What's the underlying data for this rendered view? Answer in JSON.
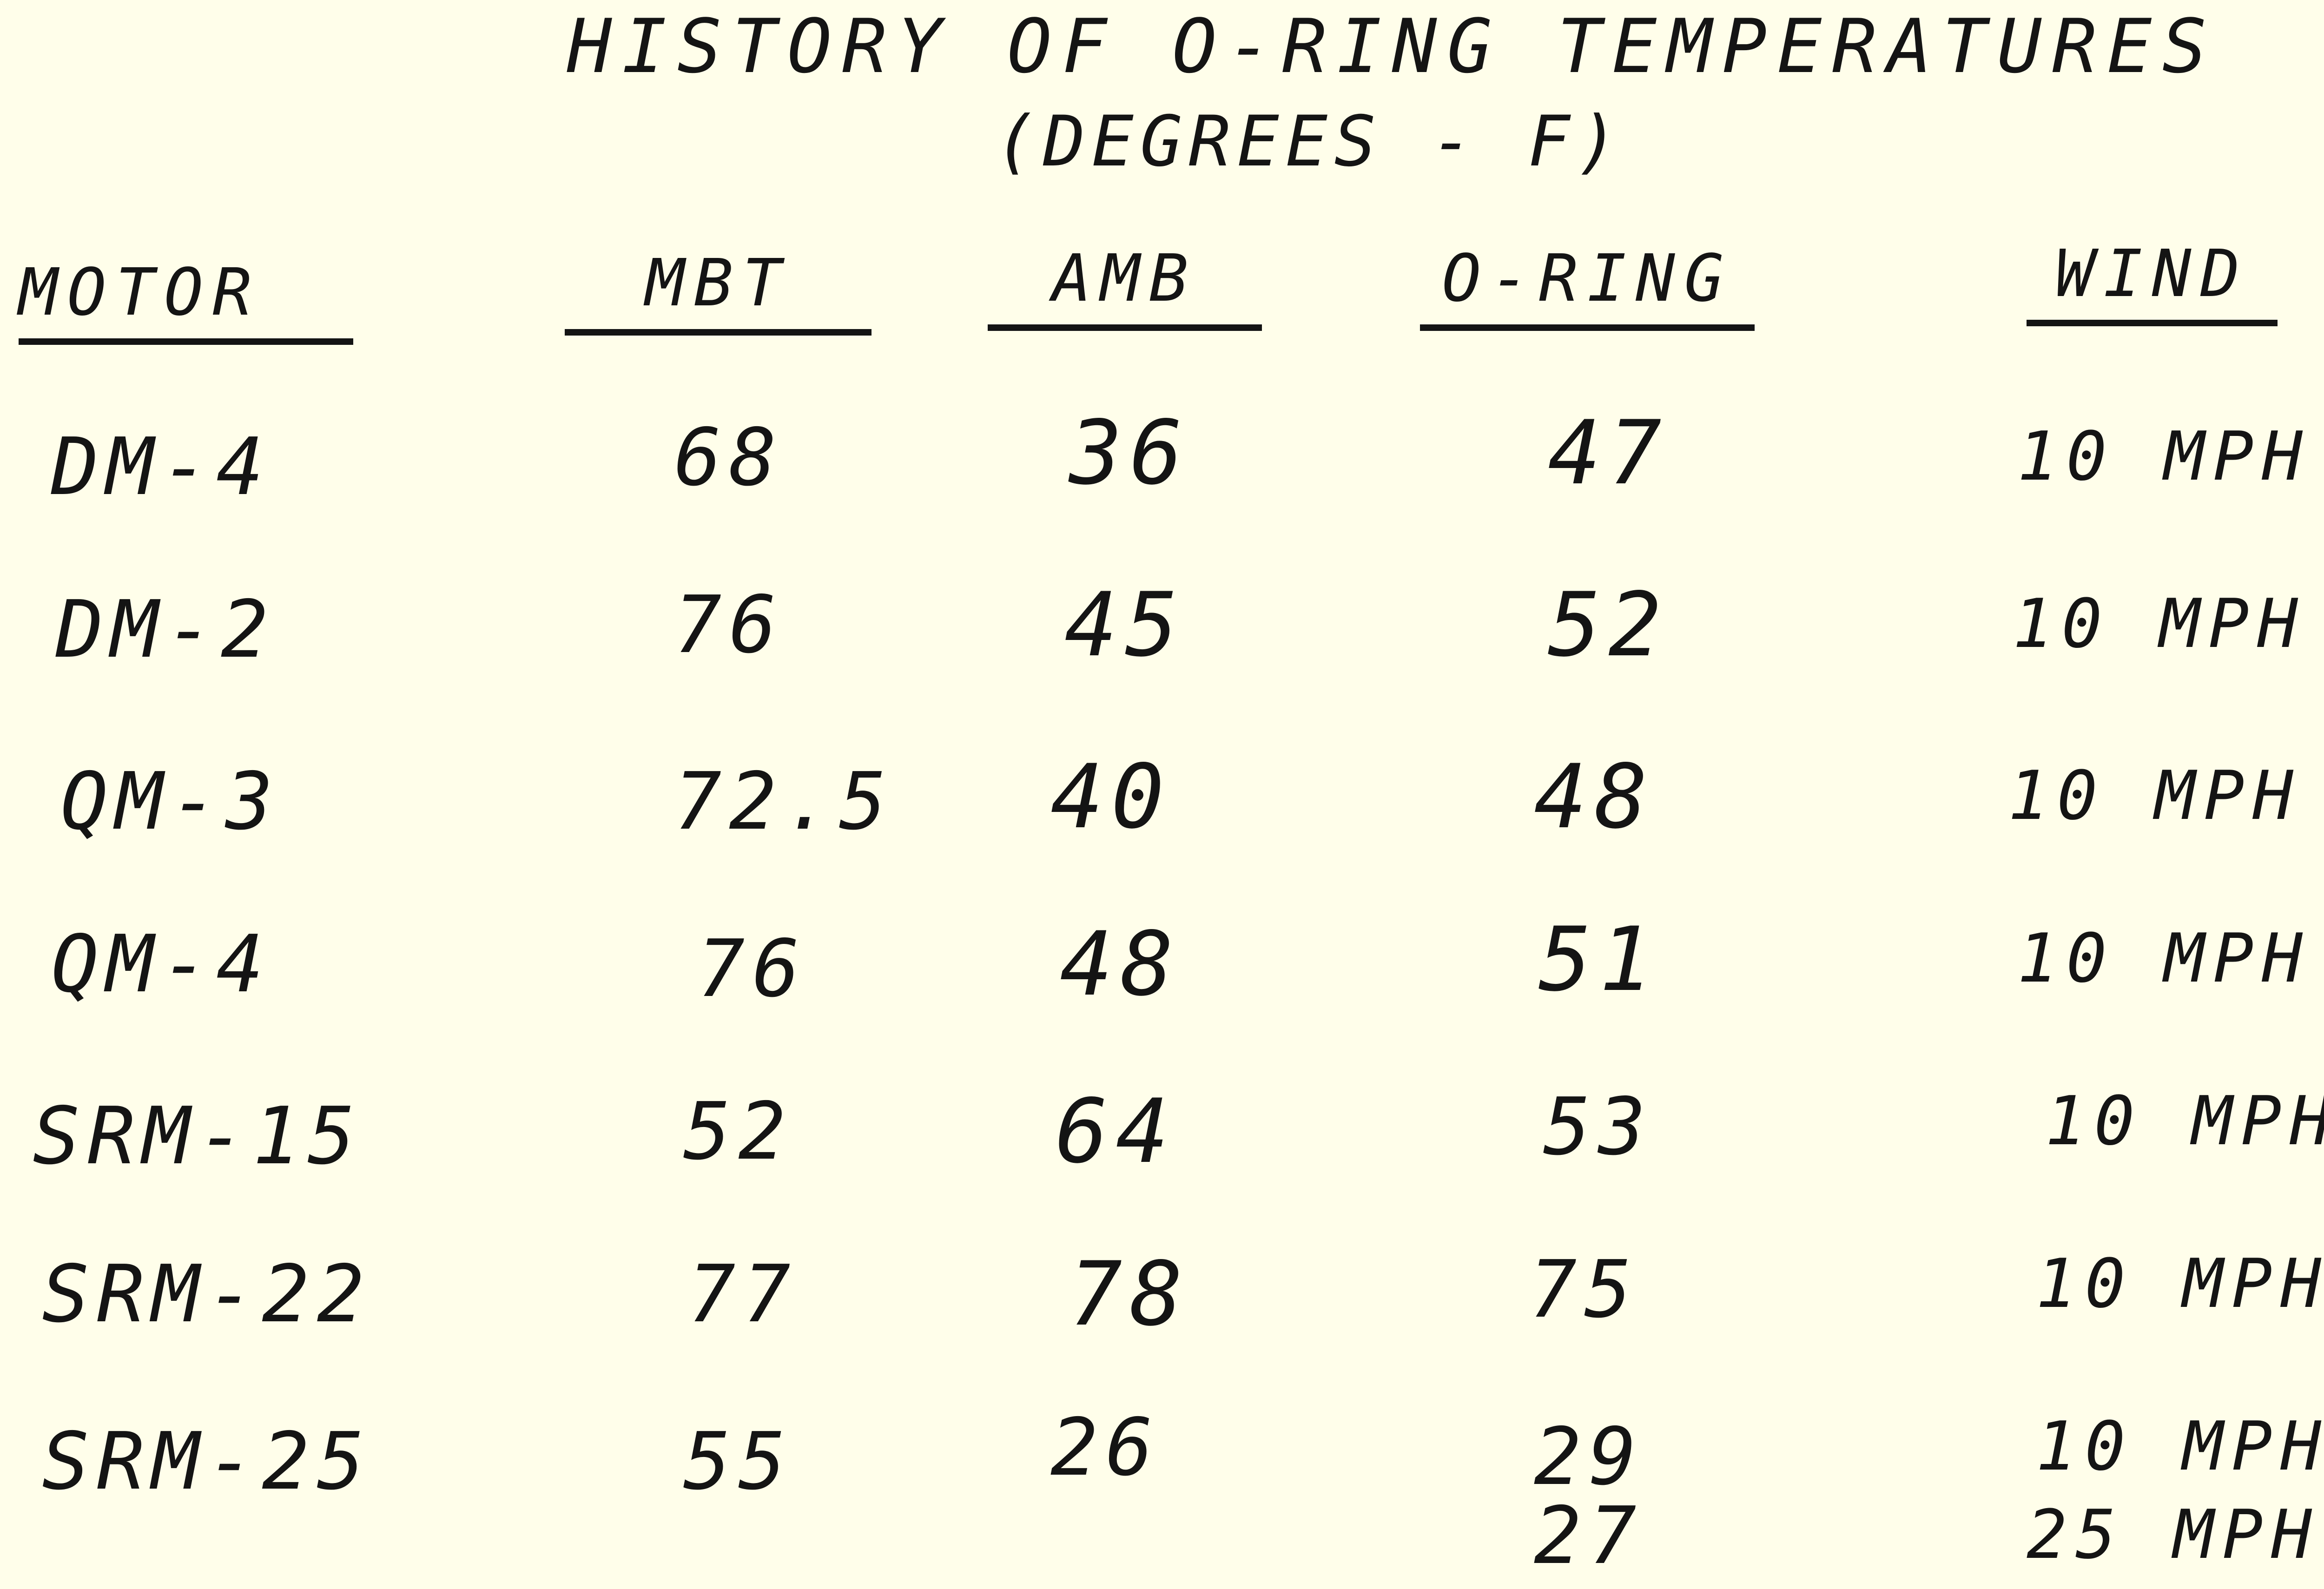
{
  "document": {
    "title": "HISTORY OF O-RING TEMPERATURES",
    "subtitle": "(DEGREES - F)"
  },
  "table": {
    "columns": [
      "MOTOR",
      "MBT",
      "AMB",
      "O-RING",
      "WIND"
    ],
    "rows": [
      {
        "motor": "DM-4",
        "mbt": "68",
        "amb": "36",
        "oring": "47",
        "wind": "10 MPH"
      },
      {
        "motor": "DM-2",
        "mbt": "76",
        "amb": "45",
        "oring": "52",
        "wind": "10 MPH"
      },
      {
        "motor": "QM-3",
        "mbt": "72.5",
        "amb": "40",
        "oring": "48",
        "wind": "10 MPH"
      },
      {
        "motor": "QM-4",
        "mbt": "76",
        "amb": "48",
        "oring": "51",
        "wind": "10 MPH"
      },
      {
        "motor": "SRM-15",
        "mbt": "52",
        "amb": "64",
        "oring": "53",
        "wind": "10 MPH"
      },
      {
        "motor": "SRM-22",
        "mbt": "77",
        "amb": "78",
        "oring": "75",
        "wind": "10 MPH"
      },
      {
        "motor": "SRM-25",
        "mbt": "55",
        "amb": "26",
        "oring": "29",
        "wind": "10 MPH"
      }
    ],
    "extra_row": {
      "oring": "27",
      "wind": "25 MPH"
    }
  }
}
